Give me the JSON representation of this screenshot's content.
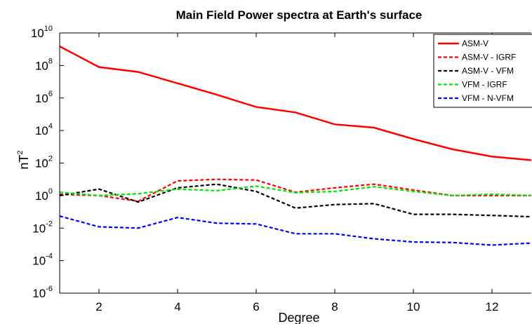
{
  "chart_data": {
    "type": "line",
    "title": "Main Field Power spectra at Earth's surface",
    "xlabel": "Degree",
    "ylabel_base": "nT",
    "ylabel_exp": "2",
    "xlim": [
      1,
      13
    ],
    "ylim": [
      1e-06,
      10000000000.0
    ],
    "yscale": "log",
    "grid": false,
    "legend_position": "top-right",
    "x_ticks": [
      2,
      4,
      6,
      8,
      10,
      12
    ],
    "y_tick_exponents": [
      -6,
      -4,
      -2,
      0,
      2,
      4,
      6,
      8,
      10
    ],
    "y_tick_base": "10",
    "x": [
      1,
      2,
      3,
      4,
      5,
      6,
      7,
      8,
      9,
      10,
      11,
      12,
      13
    ],
    "series": [
      {
        "name": "ASM-V",
        "color": "#ff0000",
        "dash": "solid",
        "values": [
          1500000000.0,
          80000000.0,
          40000000.0,
          8000000.0,
          1600000.0,
          280000.0,
          130000.0,
          24000.0,
          15000.0,
          3000.0,
          700.0,
          250.0,
          150.0
        ]
      },
      {
        "name": "ASM-V - IGRF",
        "color": "#ff0000",
        "dash": "dashed",
        "values": [
          1.2,
          1.0,
          0.45,
          8,
          10,
          9,
          1.6,
          3,
          5,
          2.2,
          1.0,
          1.0,
          1.0
        ]
      },
      {
        "name": "ASM-V - VFM",
        "color": "#000000",
        "dash": "dashed",
        "values": [
          1.0,
          2.5,
          0.4,
          3,
          5,
          1.8,
          0.17,
          0.28,
          0.32,
          0.07,
          0.07,
          0.06,
          0.05
        ]
      },
      {
        "name": "VFM - IGRF",
        "color": "#00e600",
        "dash": "dashed",
        "values": [
          1.6,
          1.0,
          1.3,
          2.5,
          2.0,
          3.8,
          1.5,
          1.8,
          3.5,
          1.8,
          1.0,
          1.2,
          1.0
        ]
      },
      {
        "name": "VFM - N-VFM",
        "color": "#0000ff",
        "dash": "dashed",
        "values": [
          0.055,
          0.012,
          0.01,
          0.045,
          0.02,
          0.018,
          0.0045,
          0.0045,
          0.0022,
          0.0014,
          0.0013,
          0.0009,
          0.0012
        ]
      }
    ]
  }
}
